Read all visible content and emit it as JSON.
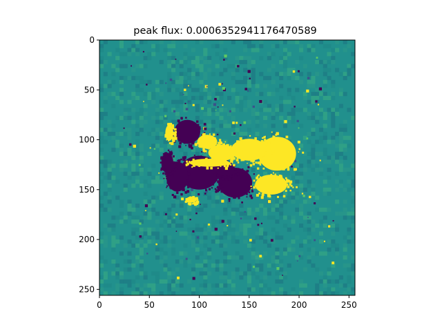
{
  "chart_data": {
    "type": "heatmap",
    "title": "peak flux: 0.0006352941176470589",
    "xlabel": "",
    "ylabel": "",
    "xlim": [
      0,
      256
    ],
    "ylim": [
      256,
      0
    ],
    "x_ticks": [
      0,
      50,
      100,
      150,
      200,
      250
    ],
    "y_ticks": [
      0,
      50,
      100,
      150,
      200,
      250
    ],
    "x_tick_labels": [
      "0",
      "50",
      "100",
      "150",
      "200",
      "250"
    ],
    "y_tick_labels": [
      "0",
      "50",
      "100",
      "150",
      "200",
      "250"
    ],
    "grid": false,
    "colormap": "viridis",
    "colors": {
      "background": "#21908d",
      "background_speckle": [
        "#1f8a89",
        "#27958a",
        "#1e7f86",
        "#2fa086"
      ],
      "negative": "#440154",
      "negative_mid": "#3b528b",
      "positive": "#fde725",
      "positive_mid": "#5ec962"
    },
    "regions": [
      {
        "polarity": "negative",
        "center": [
          88,
          92
        ],
        "radii": [
          13,
          12
        ]
      },
      {
        "polarity": "negative",
        "center": [
          100,
          133
        ],
        "radii": [
          20,
          17
        ]
      },
      {
        "polarity": "negative",
        "center": [
          78,
          137
        ],
        "radii": [
          11,
          15
        ]
      },
      {
        "polarity": "negative",
        "center": [
          136,
          143
        ],
        "radii": [
          17,
          15
        ]
      },
      {
        "polarity": "negative",
        "center": [
          126,
          130
        ],
        "radii": [
          10,
          7
        ]
      },
      {
        "polarity": "negative",
        "center": [
          68,
          123
        ],
        "radii": [
          6,
          10
        ]
      },
      {
        "polarity": "positive",
        "center": [
          178,
          114
        ],
        "radii": [
          19,
          17
        ]
      },
      {
        "polarity": "positive",
        "center": [
          150,
          110
        ],
        "radii": [
          18,
          11
        ]
      },
      {
        "polarity": "positive",
        "center": [
          123,
          113
        ],
        "radii": [
          14,
          8
        ]
      },
      {
        "polarity": "positive",
        "center": [
          108,
          102
        ],
        "radii": [
          10,
          7
        ]
      },
      {
        "polarity": "positive",
        "center": [
          110,
          123
        ],
        "radii": [
          20,
          4
        ]
      },
      {
        "polarity": "positive",
        "center": [
          172,
          145
        ],
        "radii": [
          16,
          10
        ]
      },
      {
        "polarity": "positive",
        "center": [
          92,
          160
        ],
        "radii": [
          5,
          3
        ]
      },
      {
        "polarity": "positive",
        "center": [
          70,
          93
        ],
        "radii": [
          4,
          8
        ]
      }
    ]
  }
}
